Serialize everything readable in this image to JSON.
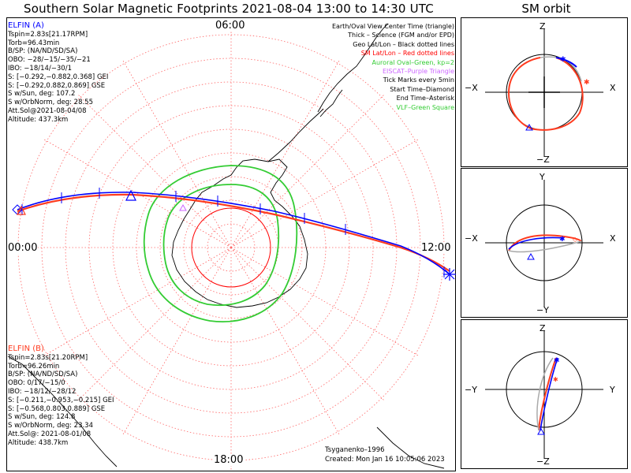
{
  "title": "Southern Solar Magnetic Footprints 2021-08-04 13:00 to 14:30 UTC",
  "orbit_title": "SM orbit",
  "colors": {
    "sat_a": "#0000ff",
    "sat_b": "#ff3b1f",
    "oval": "#33cc33",
    "grid": "#ff6666",
    "eiscat": "#cc66ff"
  },
  "ticks": {
    "top": "06:00",
    "left": "00:00",
    "right": "12:00",
    "bottom": "18:00"
  },
  "sat_a": {
    "name": "ELFIN (A)",
    "lines": [
      "Tspin=2.83s[21.17RPM]",
      "Torb=96.43min",
      "B/SP: (NA/ND/SD/SA)",
      "OBO: −28/−15/−35/−21",
      "IBO: −18/14/−30/1",
      "S: [−0.292,−0.882,0.368] GEI",
      "S: [−0.292,0.882,0.869] GSE",
      "S w/Sun, deg: 107.2",
      "S w/OrbNorm, deg: 28.55",
      "Att.Sol@2021-08-04/08",
      "Altitude: 437.3km"
    ]
  },
  "sat_b": {
    "name": "ELFIN (B)",
    "lines": [
      "Tspin=2.83s[21.20RPM]",
      "Torb=96.26min",
      "B/SP: (NA/ND/SD/SA)",
      "OBO: 0/17/−15/0",
      "IBO: −18/12/−28/12",
      "S: [−0.211,−0.953,−0.215] GEI",
      "S: [−0.568,0.803,0.889] GSE",
      "S w/Sun, deg: 124.8",
      "S w/OrbNorm, deg: 23.34",
      "Att.Sol@: 2021-08-01/08",
      "Altitude: 438.7km"
    ]
  },
  "legend": [
    {
      "text": "Earth/Oval View Center Time (triangle)",
      "color": "#000000"
    },
    {
      "text": "Thick – Science (FGM and/or EPD)",
      "color": "#000000"
    },
    {
      "text": "Geo Lat/Lon – Black dotted lines",
      "color": "#000000"
    },
    {
      "text": "SM Lat/Lon – Red dotted lines",
      "color": "#ff0000"
    },
    {
      "text": "Auroral Oval–Green, kp=2",
      "color": "#33cc33"
    },
    {
      "text": "EISCAT–Purple Triangle",
      "color": "#cc66ff"
    },
    {
      "text": "Tick Marks every 5min",
      "color": "#000000"
    },
    {
      "text": "Start Time–Diamond",
      "color": "#000000"
    },
    {
      "text": "End Time–Asterisk",
      "color": "#000000"
    },
    {
      "text": "VLF–Green Square",
      "color": "#33cc33"
    }
  ],
  "footer": {
    "credit": "Tsyganenko–1996",
    "created": "Created: Mon Jan 16 10:05:06 2023"
  },
  "orbit_panels": [
    {
      "top": "Z",
      "bottom": "−Z",
      "left": "−X",
      "right": "X"
    },
    {
      "top": "Y",
      "bottom": "−Y",
      "left": "−X",
      "right": "X"
    },
    {
      "top": "Z",
      "bottom": "−Z",
      "left": "−Y",
      "right": "Y"
    }
  ]
}
